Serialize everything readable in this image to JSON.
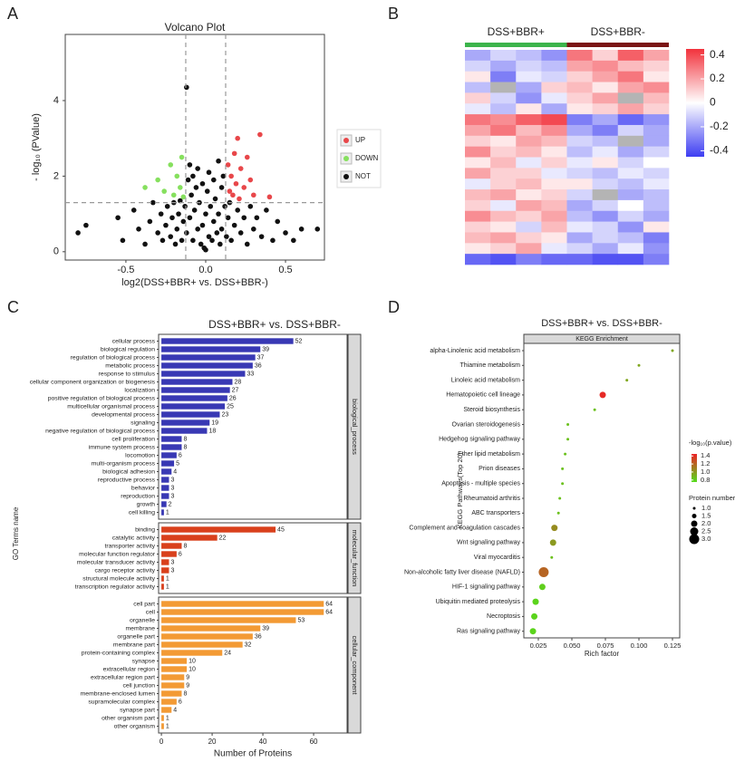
{
  "panel_labels": [
    "A",
    "B",
    "C",
    "D"
  ],
  "chart_data": [
    {
      "type": "scatter",
      "title": "Volcano Plot",
      "xlabel": "log2(DSS+BBR+ vs. DSS+BBR-)",
      "ylabel": "- log₁₀ (PValue)",
      "xlim": [
        -0.88,
        0.744
      ],
      "ylim": [
        -0.22,
        5.75
      ],
      "xticks": [
        -0.5,
        {
          "value": 0,
          "label": "0.0"
        },
        0.5
      ],
      "yticks": [
        0,
        2,
        4
      ],
      "vlines": [
        -0.125,
        0.125
      ],
      "hline": 1.3,
      "legend": "right",
      "series": [
        {
          "name": "UP",
          "color": "#e8474a",
          "x": [
            0.14,
            0.15,
            0.16,
            0.17,
            0.18,
            0.19,
            0.2,
            0.21,
            0.22,
            0.24,
            0.26,
            0.28,
            0.3,
            0.34,
            0.4
          ],
          "values": [
            2.3,
            1.6,
            2.0,
            1.5,
            2.6,
            1.8,
            3.0,
            1.4,
            2.2,
            1.7,
            2.5,
            1.9,
            1.5,
            3.1,
            1.45
          ]
        },
        {
          "name": "DOWN",
          "color": "#86e05e",
          "x": [
            -0.38,
            -0.3,
            -0.26,
            -0.22,
            -0.2,
            -0.18,
            -0.16,
            -0.15,
            -0.14
          ],
          "values": [
            1.7,
            1.9,
            1.6,
            2.3,
            1.5,
            2.0,
            1.7,
            2.5,
            1.45
          ]
        },
        {
          "name": "NOT",
          "color": "#111111",
          "x": [
            -0.8,
            -0.75,
            -0.55,
            -0.52,
            -0.45,
            -0.42,
            -0.38,
            -0.35,
            -0.33,
            -0.3,
            -0.28,
            -0.27,
            -0.25,
            -0.24,
            -0.22,
            -0.21,
            -0.2,
            -0.19,
            -0.18,
            -0.17,
            -0.16,
            -0.15,
            -0.14,
            -0.13,
            -0.12,
            -0.12,
            -0.11,
            -0.1,
            -0.1,
            -0.09,
            -0.08,
            -0.08,
            -0.07,
            -0.06,
            -0.05,
            -0.05,
            -0.04,
            -0.03,
            -0.02,
            -0.02,
            -0.01,
            0,
            0,
            0.01,
            0.02,
            0.02,
            0.03,
            0.04,
            0.05,
            0.05,
            0.06,
            0.07,
            0.08,
            0.08,
            0.09,
            0.1,
            0.1,
            0.11,
            0.12,
            0.13,
            0.14,
            0.15,
            0.16,
            0.18,
            0.2,
            0.22,
            0.24,
            0.26,
            0.28,
            0.3,
            0.32,
            0.35,
            0.38,
            0.42,
            0.45,
            0.5,
            0.55,
            0.6,
            0.7
          ],
          "values": [
            0.5,
            0.7,
            0.9,
            0.3,
            1.1,
            0.6,
            0.2,
            0.8,
            1.3,
            0.5,
            1.0,
            0.3,
            0.7,
            1.2,
            0.4,
            0.9,
            1.3,
            0.2,
            0.6,
            1.0,
            1.35,
            0.3,
            0.8,
            1.2,
            4.35,
            0.5,
            1.9,
            2.3,
            0.9,
            1.5,
            2.0,
            0.3,
            1.1,
            1.7,
            0.6,
            2.2,
            1.3,
            0.2,
            1.8,
            0.7,
            0.1,
            1.0,
            0.05,
            1.6,
            0.4,
            2.1,
            1.2,
            0.3,
            1.9,
            0.8,
            1.4,
            0.5,
            2.4,
            1.0,
            0.2,
            1.7,
            0.6,
            2.0,
            1.2,
            0.4,
            0.9,
            1.3,
            0.3,
            0.7,
            1.1,
            0.5,
            0.9,
            0.2,
            1.2,
            0.6,
            0.9,
            0.4,
            1.1,
            0.3,
            0.8,
            0.5,
            0.3,
            0.6,
            0.6
          ]
        }
      ]
    },
    {
      "type": "heatmap",
      "zlim": [
        -0.45,
        0.45
      ],
      "zticks": [
        0.4,
        0.2,
        0,
        -0.2,
        -0.4
      ],
      "colors": [
        "#3d3df2",
        "#ffffff",
        "#f2323c"
      ],
      "na_color": "#b4b4b4",
      "series": [
        {
          "name": "DSS+BBR+",
          "color": "#3cb44b",
          "values": [
            [
              -0.2,
              -0.1,
              -0.15,
              -0.25
            ],
            [
              -0.1,
              -0.2,
              -0.1,
              -0.15
            ],
            [
              0.05,
              -0.3,
              -0.05,
              -0.1
            ],
            [
              -0.15,
              null,
              -0.2,
              0.1
            ],
            [
              0.1,
              -0.1,
              -0.25,
              -0.05
            ],
            [
              -0.05,
              -0.15,
              0.05,
              -0.2
            ],
            [
              0.3,
              0.25,
              0.35,
              0.4
            ],
            [
              0.2,
              0.3,
              0.15,
              0.25
            ],
            [
              0.1,
              0.05,
              0.2,
              0.15
            ],
            [
              0.25,
              0.1,
              0.15,
              0.05
            ],
            [
              0.05,
              0.15,
              -0.05,
              0.1
            ],
            [
              0.2,
              0.1,
              0.1,
              -0.05
            ],
            [
              -0.05,
              0.1,
              0.15,
              0.05
            ],
            [
              0.15,
              0.2,
              0.05,
              0.1
            ],
            [
              0.1,
              -0.05,
              0.2,
              0.15
            ],
            [
              0.25,
              0.15,
              0.1,
              0.2
            ],
            [
              0.1,
              0.05,
              -0.1,
              0.15
            ],
            [
              0.15,
              0.2,
              0.1,
              0.05
            ],
            [
              0.05,
              0.1,
              0.2,
              -0.05
            ],
            [
              -0.35,
              -0.4,
              -0.3,
              -0.35
            ]
          ]
        },
        {
          "name": "DSS+BBR-",
          "color": "#7a1414",
          "values": [
            [
              0.3,
              0.1,
              0.35,
              0.2
            ],
            [
              0.2,
              0.25,
              0.15,
              0.1
            ],
            [
              0.1,
              0.2,
              0.3,
              0.05
            ],
            [
              0.15,
              0.05,
              0.2,
              0.25
            ],
            [
              0.1,
              0.2,
              null,
              0.15
            ],
            [
              0.05,
              0.1,
              0.2,
              0.1
            ],
            [
              -0.3,
              -0.2,
              -0.35,
              -0.25
            ],
            [
              -0.2,
              -0.3,
              -0.1,
              -0.2
            ],
            [
              -0.1,
              -0.15,
              null,
              -0.2
            ],
            [
              -0.15,
              -0.05,
              -0.2,
              -0.1
            ],
            [
              -0.05,
              0.05,
              -0.1,
              0
            ],
            [
              -0.1,
              -0.15,
              -0.05,
              -0.1
            ],
            [
              0.05,
              -0.1,
              -0.15,
              -0.05
            ],
            [
              -0.1,
              null,
              -0.2,
              -0.15
            ],
            [
              -0.2,
              -0.1,
              0,
              -0.15
            ],
            [
              -0.15,
              -0.25,
              -0.1,
              -0.2
            ],
            [
              -0.05,
              -0.1,
              -0.25,
              0.05
            ],
            [
              -0.2,
              -0.1,
              -0.15,
              -0.3
            ],
            [
              -0.1,
              -0.2,
              -0.05,
              -0.25
            ],
            [
              -0.35,
              -0.4,
              -0.4,
              -0.3
            ]
          ]
        }
      ]
    },
    {
      "type": "bar",
      "orientation": "horizontal",
      "title": "DSS+BBR+ vs. DSS+BBR-",
      "xlabel": "Number of Proteins",
      "ylabel": "GO Terms name",
      "xlim": [
        -1.1,
        73.2
      ],
      "xticks": [
        0,
        20,
        40,
        60
      ],
      "panels": [
        {
          "name": "biological_process",
          "color": "#3838b4",
          "categories": [
            "cellular process",
            "biological regulation",
            "regulation of biological process",
            "metabolic process",
            "response to stimulus",
            "cellular component organization or biogenesis",
            "localization",
            "positive regulation of biological process",
            "multicellular organismal process",
            "developmental process",
            "signaling",
            "negative regulation of biological process",
            "cell proliferation",
            "immune system process",
            "locomotion",
            "multi-organism process",
            "biological adhesion",
            "reproductive process",
            "behavior",
            "reproduction",
            "growth",
            "cell killing"
          ],
          "values": [
            52,
            39,
            37,
            36,
            33,
            28,
            27,
            26,
            25,
            23,
            19,
            18,
            8,
            8,
            6,
            5,
            4,
            3,
            3,
            3,
            2,
            1
          ]
        },
        {
          "name": "molecular_function",
          "color": "#d9401c",
          "categories": [
            "binding",
            "catalytic activity",
            "transporter activity",
            "molecular function regulator",
            "molecular transducer activity",
            "cargo receptor activity",
            "structural molecule activity",
            "transcription regulator activity"
          ],
          "values": [
            45,
            22,
            8,
            6,
            3,
            3,
            1,
            1
          ]
        },
        {
          "name": "cellular_component",
          "color": "#f39a34",
          "categories": [
            "cell part",
            "cell",
            "organelle",
            "membrane",
            "organelle part",
            "membrane part",
            "protein-containing complex",
            "synapse",
            "extracellular region",
            "extracellular region part",
            "cell junction",
            "membrane-enclosed lumen",
            "supramolecular complex",
            "synapse part",
            "other organism part",
            "other organism"
          ],
          "values": [
            64,
            64,
            53,
            39,
            36,
            32,
            24,
            10,
            10,
            9,
            9,
            8,
            6,
            4,
            1,
            1
          ]
        }
      ]
    },
    {
      "type": "bubble",
      "title": "DSS+BBR+ vs. DSS+BBR-",
      "strip": "KEGG Enrichment",
      "xlabel": "Rich factor",
      "ylabel": "KEGG Pathways(Top 20)",
      "xlim": [
        0.0142,
        0.1304
      ],
      "xticks": [
        0.025,
        {
          "value": 0.05,
          "label": "0.050"
        },
        0.075,
        {
          "value": 0.1,
          "label": "0.100"
        },
        0.125
      ],
      "categories": [
        "alpha-Linolenic acid metabolism",
        "Thiamine metabolism",
        "Linoleic acid metabolism",
        "Hematopoietic cell lineage",
        "Steroid biosynthesis",
        "Ovarian steroidogenesis",
        "Hedgehog signaling pathway",
        "Ether lipid metabolism",
        "Prion diseases",
        "Apoptosis - multiple species",
        "Rheumatoid arthritis",
        "ABC transporters",
        "Complement and coagulation cascades",
        "Wnt signaling pathway",
        "Viral myocarditis",
        "Non-alcoholic fatty liver disease (NAFLD)",
        "HIF-1 signaling pathway",
        "Ubiquitin mediated proteolysis",
        "Necroptosis",
        "Ras signaling pathway"
      ],
      "values": [
        0.125,
        0.1,
        0.091,
        0.073,
        0.067,
        0.047,
        0.047,
        0.045,
        0.043,
        0.043,
        0.041,
        0.04,
        0.037,
        0.036,
        0.035,
        0.029,
        0.028,
        0.023,
        0.022,
        0.021
      ],
      "size_values": [
        1,
        1,
        1,
        2,
        1,
        1,
        1,
        1,
        1,
        1,
        1,
        1,
        2,
        2,
        1,
        3,
        2,
        2,
        2,
        2
      ],
      "color_values": [
        0.95,
        0.95,
        0.95,
        1.42,
        0.85,
        0.85,
        0.85,
        0.85,
        0.85,
        0.85,
        0.85,
        0.85,
        1.05,
        1.0,
        0.85,
        1.2,
        0.8,
        0.78,
        0.78,
        0.78
      ],
      "color_title": "-log₁₀(p.value)",
      "color_lim": [
        0.75,
        1.45
      ],
      "colors": [
        "#55dc1c",
        "#ec2226"
      ],
      "color_ticks": [
        1.4,
        1.2,
        {
          "value": 1,
          "label": "1.0"
        },
        0.8
      ],
      "size_title": "Protein number",
      "size_ticks": [
        {
          "value": 1,
          "label": "1.0"
        },
        1.5,
        {
          "value": 2,
          "label": "2.0"
        },
        2.5,
        {
          "value": 3,
          "label": "3.0"
        }
      ]
    }
  ]
}
